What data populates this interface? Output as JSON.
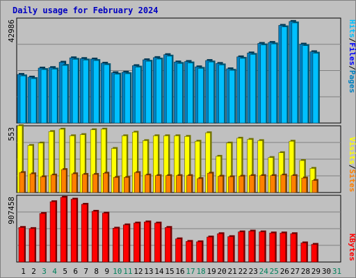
{
  "chart_data": [
    {
      "type": "bar",
      "panel": "pages-files-hits",
      "title": "Daily usage for February 2024",
      "categories": [
        "1",
        "2",
        "3",
        "4",
        "5",
        "6",
        "7",
        "8",
        "9",
        "10",
        "11",
        "12",
        "13",
        "14",
        "15",
        "16",
        "17",
        "18",
        "19",
        "20",
        "21",
        "22",
        "23",
        "24",
        "25",
        "26",
        "27",
        "28",
        "29",
        "30",
        "31"
      ],
      "y_tick_label": "42986",
      "ylim": [
        0,
        42986
      ],
      "grid": true,
      "series": [
        {
          "name": "Pages",
          "color": "#0080c0",
          "values": [
            19900,
            18800,
            22500,
            22700,
            24900,
            26700,
            26400,
            26200,
            24500,
            20600,
            20800,
            23500,
            25900,
            26800,
            28000,
            25000,
            25200,
            23000,
            25600,
            24400,
            22200,
            27100,
            28700,
            32600,
            33000,
            40000,
            41600,
            32300,
            29200,
            null,
            null
          ]
        },
        {
          "name": "Files",
          "color": "#0000ff",
          "values": [
            19900,
            18800,
            22500,
            22700,
            24900,
            26700,
            26400,
            26200,
            24500,
            20600,
            20800,
            23500,
            25900,
            26800,
            28000,
            25000,
            25200,
            23000,
            25600,
            24400,
            22200,
            27100,
            28700,
            32600,
            33000,
            40000,
            41600,
            32300,
            29200,
            null,
            null
          ]
        },
        {
          "name": "Hits",
          "color": "#00c0ff",
          "values": [
            19300,
            18200,
            21900,
            22100,
            23600,
            26100,
            25800,
            25600,
            23900,
            20000,
            20200,
            22900,
            25300,
            26200,
            27400,
            24400,
            24600,
            22400,
            25000,
            23800,
            21600,
            26500,
            28100,
            32000,
            32400,
            39400,
            41000,
            31700,
            28600,
            null,
            null
          ]
        }
      ]
    },
    {
      "type": "bar",
      "panel": "sites-visits",
      "categories": [
        "1",
        "2",
        "3",
        "4",
        "5",
        "6",
        "7",
        "8",
        "9",
        "10",
        "11",
        "12",
        "13",
        "14",
        "15",
        "16",
        "17",
        "18",
        "19",
        "20",
        "21",
        "22",
        "23",
        "24",
        "25",
        "26",
        "27",
        "28",
        "29",
        "30",
        "31"
      ],
      "y_tick_label": "553",
      "ylim": [
        0,
        553
      ],
      "grid": true,
      "series": [
        {
          "name": "Visits",
          "color": "#ffff00",
          "values": [
            553,
            390,
            410,
            505,
            525,
            470,
            480,
            520,
            525,
            365,
            470,
            500,
            430,
            470,
            470,
            470,
            465,
            425,
            495,
            300,
            410,
            450,
            440,
            430,
            290,
            330,
            425,
            265,
            200,
            null,
            null
          ]
        },
        {
          "name": "Sites",
          "color": "#ff8000",
          "values": [
            165,
            155,
            130,
            145,
            190,
            155,
            150,
            150,
            160,
            125,
            125,
            165,
            145,
            140,
            140,
            140,
            140,
            115,
            160,
            135,
            130,
            135,
            140,
            140,
            140,
            145,
            140,
            120,
            100,
            null,
            null
          ]
        }
      ]
    },
    {
      "type": "bar",
      "panel": "kbytes",
      "categories": [
        "1",
        "2",
        "3",
        "4",
        "5",
        "6",
        "7",
        "8",
        "9",
        "10",
        "11",
        "12",
        "13",
        "14",
        "15",
        "16",
        "17",
        "18",
        "19",
        "20",
        "21",
        "22",
        "23",
        "24",
        "25",
        "26",
        "27",
        "28",
        "29",
        "30",
        "31"
      ],
      "y_tick_label": "907458",
      "ylim": [
        0,
        907458
      ],
      "grid": true,
      "series": [
        {
          "name": "KBytes",
          "color": "#ff0000",
          "values": [
            470000,
            455000,
            660000,
            820000,
            880000,
            855000,
            785000,
            690000,
            665000,
            460000,
            505000,
            530000,
            545000,
            530000,
            470000,
            315000,
            280000,
            275000,
            340000,
            385000,
            345000,
            410000,
            420000,
            410000,
            395000,
            395000,
            385000,
            260000,
            240000,
            null,
            null
          ]
        }
      ]
    }
  ],
  "legend": {
    "top": [
      {
        "text": "Hits",
        "color": "#00c0ff"
      },
      {
        "text": "/",
        "color": "#000000"
      },
      {
        "text": "Files",
        "color": "#0000ff"
      },
      {
        "text": "/",
        "color": "#000000"
      },
      {
        "text": "Pages",
        "color": "#0080c0"
      }
    ],
    "middle": [
      {
        "text": "Visits",
        "color": "#ffff00"
      },
      {
        "text": "/",
        "color": "#000000"
      },
      {
        "text": "Sites",
        "color": "#ff8000"
      }
    ],
    "bottom": [
      {
        "text": "KBytes",
        "color": "#ff0000"
      }
    ]
  },
  "day_label_colors": {
    "weekday": "#000000",
    "weekend": "#00805c"
  },
  "weekend_days": [
    "3",
    "4",
    "10",
    "11",
    "17",
    "18",
    "24",
    "25",
    "31"
  ]
}
